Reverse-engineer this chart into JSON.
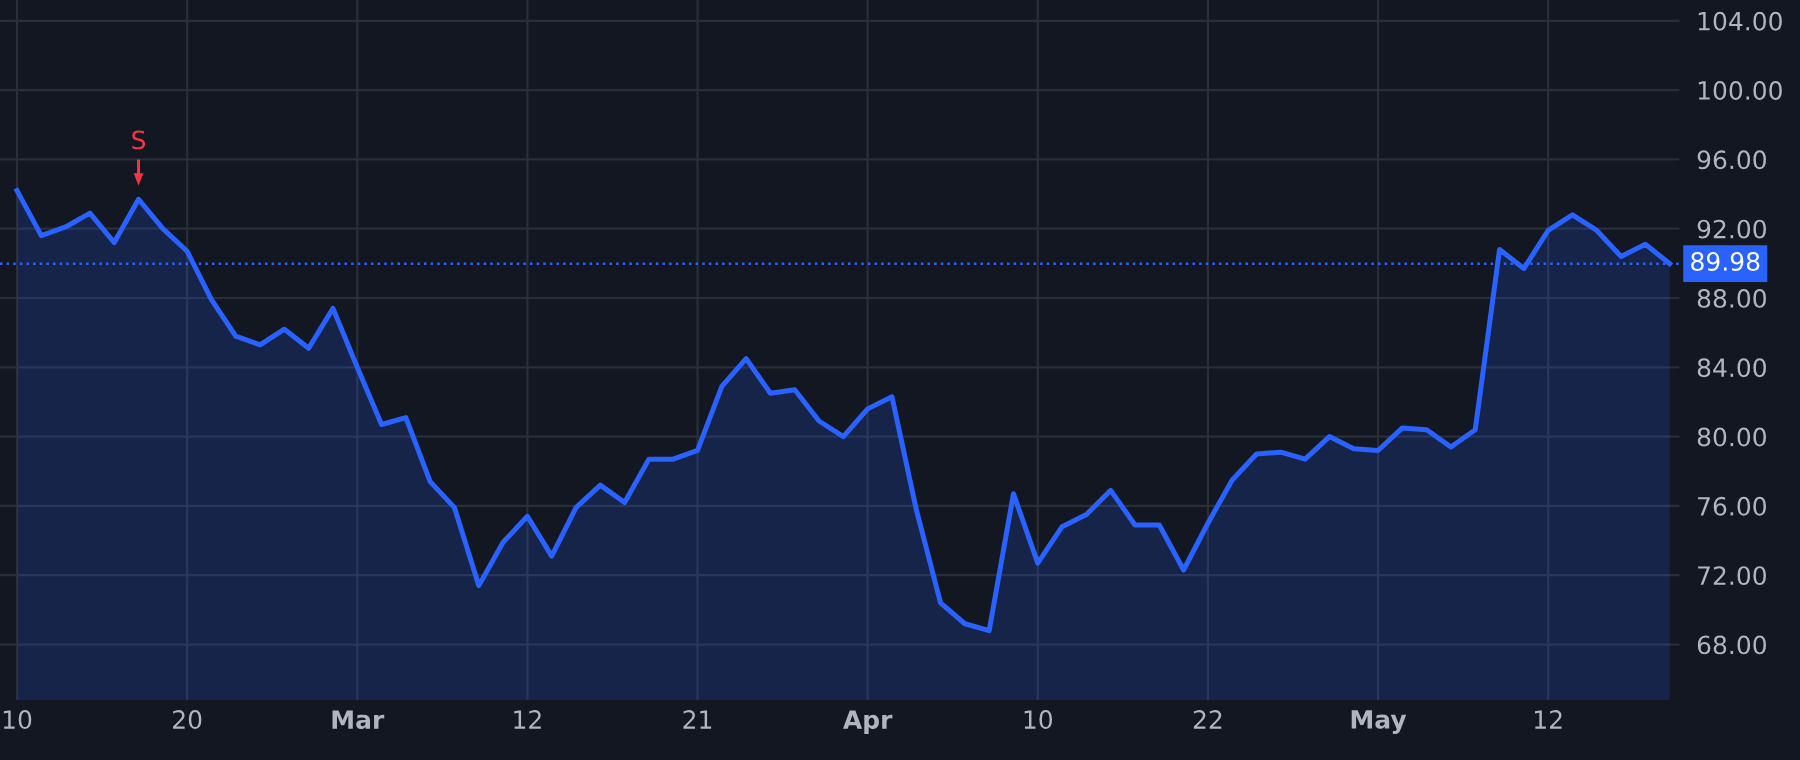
{
  "chart_data": {
    "type": "area",
    "categories": [
      "10",
      null,
      null,
      null,
      null,
      null,
      null,
      "20",
      null,
      null,
      null,
      null,
      null,
      null,
      "Mar",
      null,
      null,
      null,
      null,
      null,
      null,
      "12",
      null,
      null,
      null,
      null,
      null,
      null,
      "21",
      null,
      null,
      null,
      null,
      null,
      null,
      "Apr",
      null,
      null,
      null,
      null,
      null,
      null,
      "10",
      null,
      null,
      null,
      null,
      null,
      null,
      "22",
      null,
      null,
      null,
      null,
      null,
      null,
      "May",
      null,
      null,
      null,
      null,
      null,
      null,
      "12",
      null,
      null,
      null,
      null,
      null
    ],
    "series": [
      {
        "color": "#2962ff",
        "values": [
          94.2,
          91.6,
          92.1,
          92.9,
          91.2,
          93.7,
          92.0,
          90.7,
          87.9,
          85.8,
          85.3,
          86.2,
          85.1,
          87.4,
          84.0,
          80.7,
          81.1,
          77.4,
          75.9,
          71.4,
          73.9,
          75.4,
          73.1,
          75.9,
          77.2,
          76.2,
          78.7,
          78.7,
          79.2,
          82.9,
          84.5,
          82.5,
          82.7,
          80.9,
          80.0,
          81.6,
          82.3,
          75.8,
          70.4,
          69.2,
          68.8,
          76.7,
          72.7,
          74.8,
          75.5,
          76.9,
          74.9,
          74.9,
          72.3,
          75.0,
          77.5,
          79.0,
          79.1,
          78.7,
          80.0,
          79.3,
          79.2,
          80.5,
          80.4,
          79.4,
          80.4,
          90.8,
          89.7,
          91.9,
          92.8,
          91.9,
          90.4,
          91.1,
          89.98
        ]
      }
    ],
    "ylim": [
      64.8,
      105.2
    ],
    "yticks": [
      {
        "value": 68,
        "label": "68.00"
      },
      {
        "value": 72,
        "label": "72.00"
      },
      {
        "value": 76,
        "label": "76.00"
      },
      {
        "value": 80,
        "label": "80.00"
      },
      {
        "value": 84,
        "label": "84.00"
      },
      {
        "value": 88,
        "label": "88.00"
      },
      {
        "value": 92,
        "label": "92.00"
      },
      {
        "value": 96,
        "label": "96.00"
      },
      {
        "value": 100,
        "label": "100.00"
      },
      {
        "value": 104,
        "label": "104.00"
      }
    ],
    "ref_lines": [
      {
        "axis": "y",
        "value": 89.98,
        "label": "89.98",
        "color": "#2962ff",
        "line_style": "dotted"
      }
    ],
    "annotations": [
      {
        "text": "S",
        "y": 93.7
      }
    ],
    "grid": true
  }
}
